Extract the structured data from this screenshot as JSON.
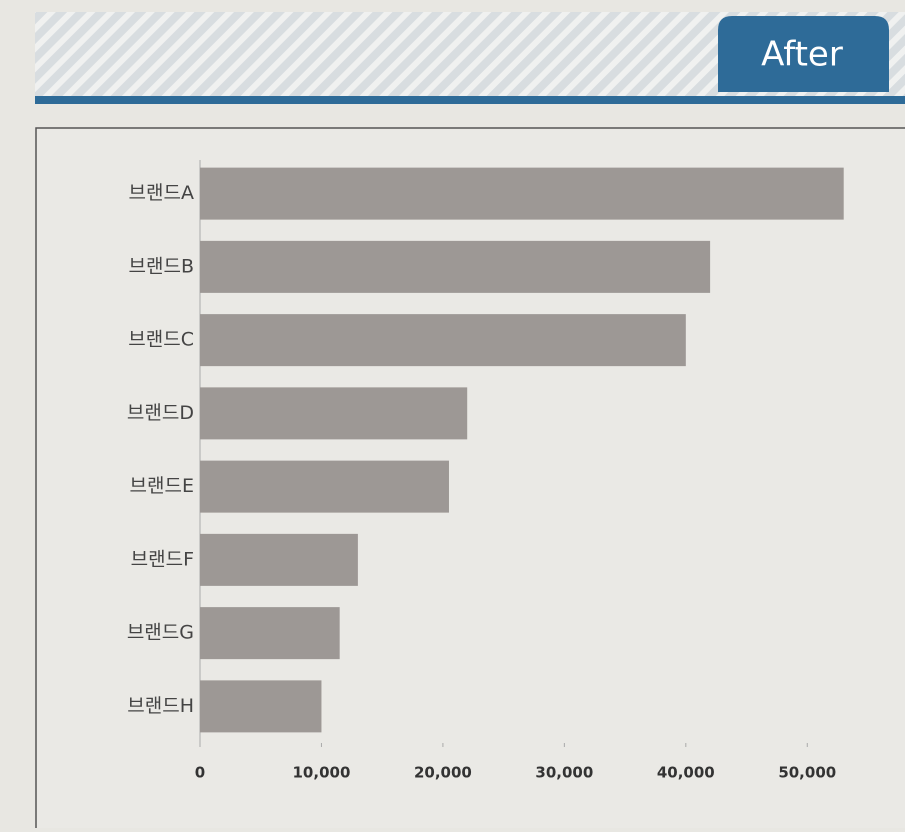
{
  "badge": "After",
  "chart_data": {
    "type": "barh",
    "categories": [
      "브랜드A",
      "브랜드B",
      "브랜드C",
      "브랜드D",
      "브랜드E",
      "브랜드F",
      "브랜드G",
      "브랜드H"
    ],
    "values": [
      53000,
      42000,
      40000,
      22000,
      20500,
      13000,
      11500,
      10000
    ],
    "color": "#9d9895",
    "xlim": [
      0,
      55000
    ],
    "xticks": [
      0,
      {
        "value": 10000,
        "label": "10,000"
      },
      {
        "value": 20000,
        "label": "20,000"
      },
      {
        "value": 30000,
        "label": "30,000"
      },
      {
        "value": 40000,
        "label": "40,000"
      },
      {
        "value": 50000,
        "label": "50,000"
      }
    ],
    "grid": false
  }
}
